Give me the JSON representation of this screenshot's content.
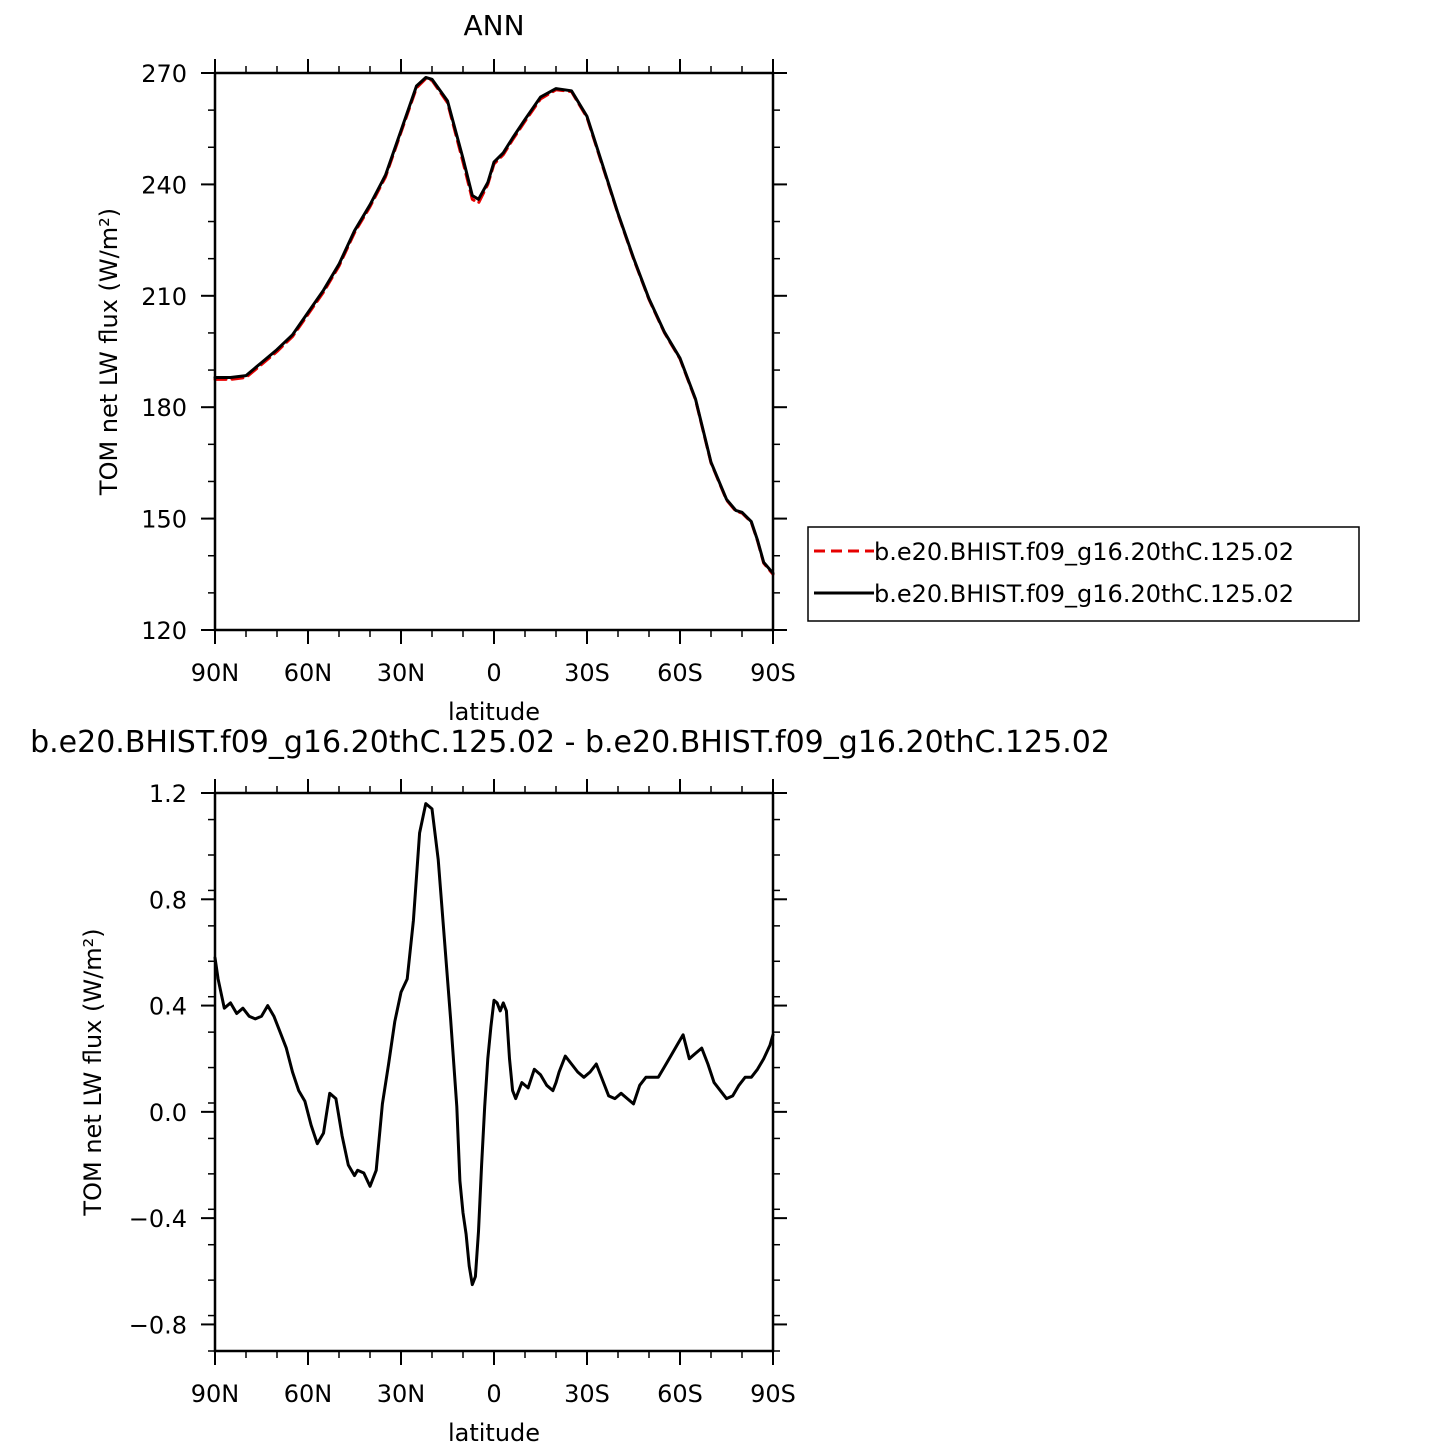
{
  "chart_data": [
    {
      "type": "line",
      "title": "ANN",
      "xlabel": "latitude",
      "ylabel": "TOM net LW flux (W/m²)",
      "xlim": [
        90,
        -90
      ],
      "ylim": [
        120,
        270
      ],
      "xticks": [
        90,
        60,
        30,
        0,
        -30,
        -60,
        -90
      ],
      "xtick_labels": [
        "90N",
        "60N",
        "30N",
        "0",
        "30S",
        "60S",
        "90S"
      ],
      "yticks": [
        120,
        150,
        180,
        210,
        240,
        270
      ],
      "ytick_labels": [
        "120",
        "150",
        "180",
        "210",
        "240",
        "270"
      ],
      "grid": false,
      "legend_position": "right",
      "x": [
        90,
        85,
        80,
        75,
        70,
        65,
        60,
        55,
        50,
        45,
        40,
        35,
        30,
        25,
        22,
        20,
        15,
        10,
        7,
        5,
        2,
        0,
        -3,
        -6,
        -10,
        -15,
        -20,
        -25,
        -30,
        -35,
        -40,
        -45,
        -50,
        -55,
        -60,
        -65,
        -70,
        -75,
        -78,
        -80,
        -83,
        -85,
        -87,
        -90
      ],
      "series": [
        {
          "name": "b.e20.BHIST.f09_g16.20thC.125.02",
          "color": "#e60000",
          "dash": true,
          "values": [
            187.5,
            187.5,
            188,
            191.5,
            195,
            199,
            205,
            211,
            218,
            227,
            234,
            242,
            254,
            266,
            268.5,
            268,
            262,
            246,
            236,
            235,
            240,
            245.5,
            248,
            252,
            257,
            263,
            265.5,
            265,
            258,
            245,
            232,
            220,
            209,
            200,
            193,
            182,
            165,
            155,
            152,
            151.5,
            149,
            144,
            138,
            135
          ]
        },
        {
          "name": "b.e20.BHIST.f09_g16.20thC.125.02",
          "color": "#000000",
          "dash": false,
          "values": [
            188,
            188,
            188.5,
            192,
            195.5,
            199.5,
            205.5,
            211.5,
            218.5,
            227.5,
            234.5,
            242.5,
            254.5,
            266.5,
            268.8,
            268.3,
            262.5,
            247,
            237,
            236,
            240.5,
            246,
            248.5,
            252.5,
            257.5,
            263.5,
            265.8,
            265.2,
            258.3,
            245.3,
            232.2,
            220.2,
            209.2,
            200.2,
            193.2,
            182.2,
            165.2,
            155.2,
            152.2,
            151.7,
            149.2,
            144.2,
            138.2,
            135.3
          ]
        }
      ]
    },
    {
      "type": "line",
      "title": "b.e20.BHIST.f09_g16.20thC.125.02 - b.e20.BHIST.f09_g16.20thC.125.02",
      "xlabel": "latitude",
      "ylabel": "TOM net LW flux (W/m²)",
      "xlim": [
        90,
        -90
      ],
      "ylim": [
        -0.9,
        1.2
      ],
      "xticks": [
        90,
        60,
        30,
        0,
        -30,
        -60,
        -90
      ],
      "xtick_labels": [
        "90N",
        "60N",
        "30N",
        "0",
        "30S",
        "60S",
        "90S"
      ],
      "yticks": [
        -0.8,
        -0.4,
        0.0,
        0.4,
        0.8,
        1.2
      ],
      "ytick_labels": [
        "−0.8",
        "−0.4",
        "0.0",
        "0.4",
        "0.8",
        "1.2"
      ],
      "grid": false,
      "x": [
        90,
        89,
        87,
        85,
        83,
        81,
        79,
        77,
        75,
        73,
        71,
        69,
        67,
        65,
        63,
        61,
        59,
        57,
        55,
        53,
        51,
        49,
        47,
        45,
        44,
        42,
        40,
        38,
        36,
        34,
        32,
        30,
        28,
        26,
        24,
        22,
        20,
        18,
        16,
        14,
        12,
        11,
        10,
        9,
        8,
        7,
        6,
        5,
        4,
        3,
        2,
        1,
        0,
        -1,
        -2,
        -3,
        -4,
        -5,
        -6,
        -7,
        -9,
        -11,
        -13,
        -15,
        -17,
        -19,
        -20,
        -21,
        -23,
        -25,
        -27,
        -29,
        -31,
        -33,
        -35,
        -37,
        -39,
        -41,
        -43,
        -45,
        -47,
        -49,
        -51,
        -53,
        -55,
        -57,
        -59,
        -61,
        -63,
        -65,
        -67,
        -69,
        -71,
        -73,
        -75,
        -77,
        -79,
        -81,
        -83,
        -85,
        -87,
        -89,
        -90
      ],
      "series": [
        {
          "name": "",
          "color": "#000000",
          "dash": false,
          "values": [
            0.58,
            0.5,
            0.39,
            0.41,
            0.37,
            0.39,
            0.36,
            0.35,
            0.36,
            0.4,
            0.36,
            0.3,
            0.24,
            0.15,
            0.08,
            0.04,
            -0.05,
            -0.12,
            -0.08,
            0.07,
            0.05,
            -0.09,
            -0.2,
            -0.24,
            -0.22,
            -0.23,
            -0.28,
            -0.22,
            0.03,
            0.18,
            0.34,
            0.45,
            0.5,
            0.72,
            1.05,
            1.16,
            1.14,
            0.95,
            0.65,
            0.35,
            0.02,
            -0.26,
            -0.38,
            -0.46,
            -0.58,
            -0.65,
            -0.62,
            -0.45,
            -0.2,
            0.02,
            0.2,
            0.32,
            0.42,
            0.41,
            0.38,
            0.41,
            0.38,
            0.2,
            0.08,
            0.05,
            0.11,
            0.09,
            0.16,
            0.14,
            0.1,
            0.08,
            0.11,
            0.15,
            0.21,
            0.18,
            0.15,
            0.13,
            0.15,
            0.18,
            0.12,
            0.06,
            0.05,
            0.07,
            0.05,
            0.03,
            0.1,
            0.13,
            0.13,
            0.13,
            0.17,
            0.21,
            0.25,
            0.29,
            0.2,
            0.22,
            0.24,
            0.18,
            0.11,
            0.08,
            0.05,
            0.06,
            0.1,
            0.13,
            0.13,
            0.16,
            0.2,
            0.25,
            0.29
          ]
        }
      ]
    }
  ]
}
